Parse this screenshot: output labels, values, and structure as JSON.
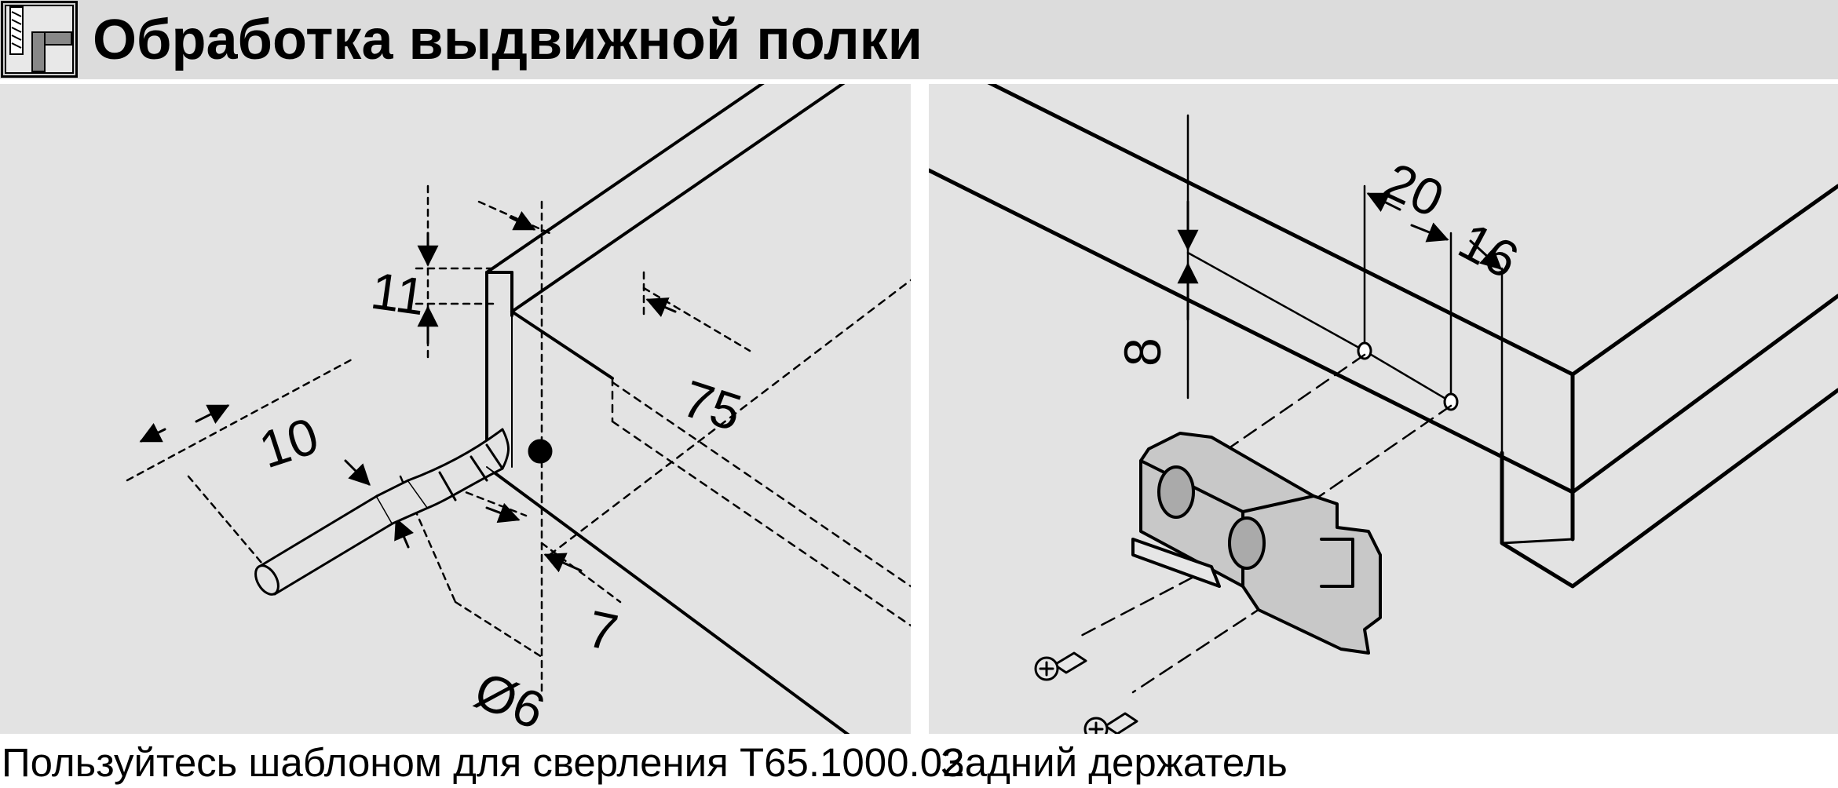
{
  "header": {
    "title": "Обработка выдвижной полки",
    "icon": "drill-template-icon"
  },
  "left_panel": {
    "caption": "Пользуйтесь шаблоном для сверления T65.1000.02",
    "dimensions": {
      "d11": "11",
      "d75": "75",
      "d10": "10",
      "d7": "7",
      "d6": "Ø6"
    }
  },
  "right_panel": {
    "caption": "Задний держатель",
    "dimensions": {
      "d20": "20",
      "d16": "16",
      "d8": "8"
    }
  },
  "colors": {
    "header_bg": "#dcdcdc",
    "panel_bg": "#e3e3e3",
    "part_fill": "#c8c8c8",
    "line": "#000000"
  }
}
